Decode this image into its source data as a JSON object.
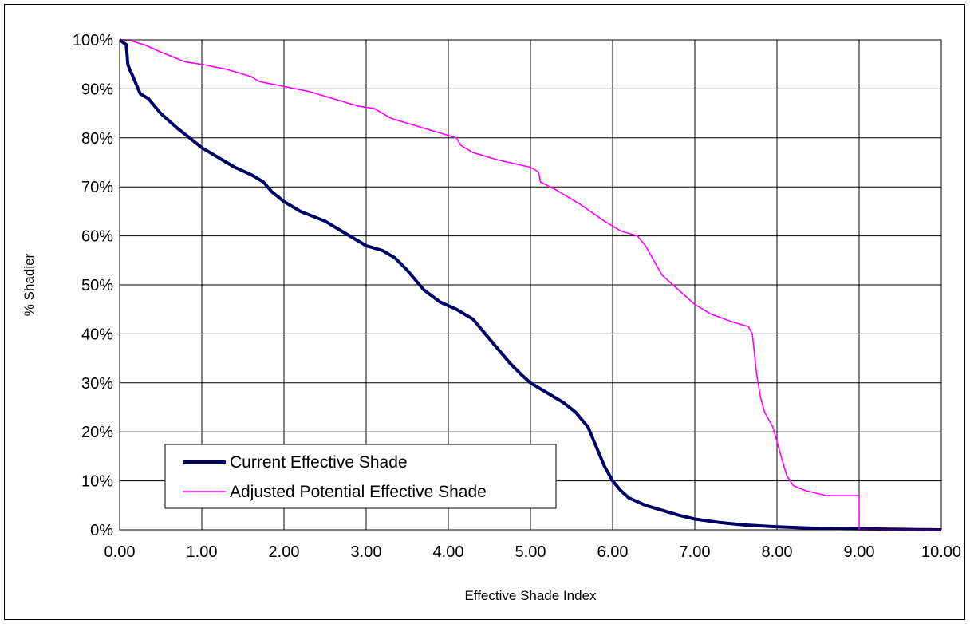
{
  "chart_data": {
    "type": "line",
    "title": "",
    "xlabel": "Effective Shade Index",
    "ylabel": "% Shadier",
    "xlim": [
      0,
      10
    ],
    "ylim": [
      0,
      100
    ],
    "x_ticks": [
      "0.00",
      "1.00",
      "2.00",
      "3.00",
      "4.00",
      "5.00",
      "6.00",
      "7.00",
      "8.00",
      "9.00",
      "10.00"
    ],
    "y_ticks": [
      "0%",
      "10%",
      "20%",
      "30%",
      "40%",
      "50%",
      "60%",
      "70%",
      "80%",
      "90%",
      "100%"
    ],
    "grid": true,
    "legend_position": "bottom-left",
    "series": [
      {
        "name": "Current Effective Shade",
        "color": "#000066",
        "points": [
          [
            0.0,
            100
          ],
          [
            0.08,
            99
          ],
          [
            0.1,
            95
          ],
          [
            0.12,
            94
          ],
          [
            0.15,
            93
          ],
          [
            0.2,
            91
          ],
          [
            0.25,
            89
          ],
          [
            0.35,
            88
          ],
          [
            0.5,
            85
          ],
          [
            0.7,
            82
          ],
          [
            0.85,
            80
          ],
          [
            1.0,
            78
          ],
          [
            1.2,
            76
          ],
          [
            1.4,
            74
          ],
          [
            1.6,
            72.5
          ],
          [
            1.75,
            71
          ],
          [
            1.85,
            69
          ],
          [
            2.0,
            67
          ],
          [
            2.2,
            65
          ],
          [
            2.5,
            63
          ],
          [
            2.7,
            61
          ],
          [
            3.0,
            58
          ],
          [
            3.2,
            57
          ],
          [
            3.35,
            55.5
          ],
          [
            3.5,
            53
          ],
          [
            3.7,
            49
          ],
          [
            3.9,
            46.5
          ],
          [
            4.1,
            45
          ],
          [
            4.3,
            43
          ],
          [
            4.45,
            40
          ],
          [
            4.6,
            37
          ],
          [
            4.75,
            34
          ],
          [
            4.9,
            31.5
          ],
          [
            5.0,
            30
          ],
          [
            5.2,
            28
          ],
          [
            5.4,
            26
          ],
          [
            5.55,
            24
          ],
          [
            5.7,
            21
          ],
          [
            5.8,
            17
          ],
          [
            5.9,
            13
          ],
          [
            6.0,
            10
          ],
          [
            6.1,
            8
          ],
          [
            6.2,
            6.5
          ],
          [
            6.4,
            5
          ],
          [
            6.6,
            4
          ],
          [
            6.8,
            3
          ],
          [
            7.0,
            2.2
          ],
          [
            7.3,
            1.5
          ],
          [
            7.6,
            1
          ],
          [
            8.0,
            0.6
          ],
          [
            8.5,
            0.3
          ],
          [
            9.0,
            0.2
          ],
          [
            9.5,
            0.1
          ],
          [
            10.0,
            0
          ]
        ]
      },
      {
        "name": "Adjusted Potential Effective Shade",
        "color": "#ff00ff",
        "points": [
          [
            0.0,
            100
          ],
          [
            0.1,
            100
          ],
          [
            0.3,
            99
          ],
          [
            0.5,
            97.5
          ],
          [
            0.8,
            95.5
          ],
          [
            1.0,
            95
          ],
          [
            1.3,
            94
          ],
          [
            1.6,
            92.5
          ],
          [
            1.7,
            91.5
          ],
          [
            2.0,
            90.5
          ],
          [
            2.3,
            89.5
          ],
          [
            2.6,
            88
          ],
          [
            2.9,
            86.5
          ],
          [
            3.1,
            86
          ],
          [
            3.3,
            84
          ],
          [
            3.6,
            82.5
          ],
          [
            3.8,
            81.5
          ],
          [
            4.1,
            80
          ],
          [
            4.15,
            78.5
          ],
          [
            4.3,
            77
          ],
          [
            4.6,
            75.5
          ],
          [
            5.0,
            74
          ],
          [
            5.1,
            73
          ],
          [
            5.12,
            71
          ],
          [
            5.3,
            69.5
          ],
          [
            5.6,
            66.5
          ],
          [
            5.9,
            63
          ],
          [
            6.1,
            61
          ],
          [
            6.3,
            60
          ],
          [
            6.4,
            58
          ],
          [
            6.5,
            55
          ],
          [
            6.6,
            52
          ],
          [
            6.8,
            49
          ],
          [
            7.0,
            46
          ],
          [
            7.2,
            44
          ],
          [
            7.45,
            42.5
          ],
          [
            7.65,
            41.5
          ],
          [
            7.7,
            40
          ],
          [
            7.75,
            32
          ],
          [
            7.8,
            27
          ],
          [
            7.85,
            24
          ],
          [
            7.95,
            21
          ],
          [
            8.0,
            18
          ],
          [
            8.05,
            15
          ],
          [
            8.12,
            11
          ],
          [
            8.2,
            9
          ],
          [
            8.35,
            8
          ],
          [
            8.6,
            7
          ],
          [
            9.0,
            7
          ],
          [
            9.001,
            0
          ],
          [
            10.0,
            0
          ]
        ]
      }
    ]
  }
}
